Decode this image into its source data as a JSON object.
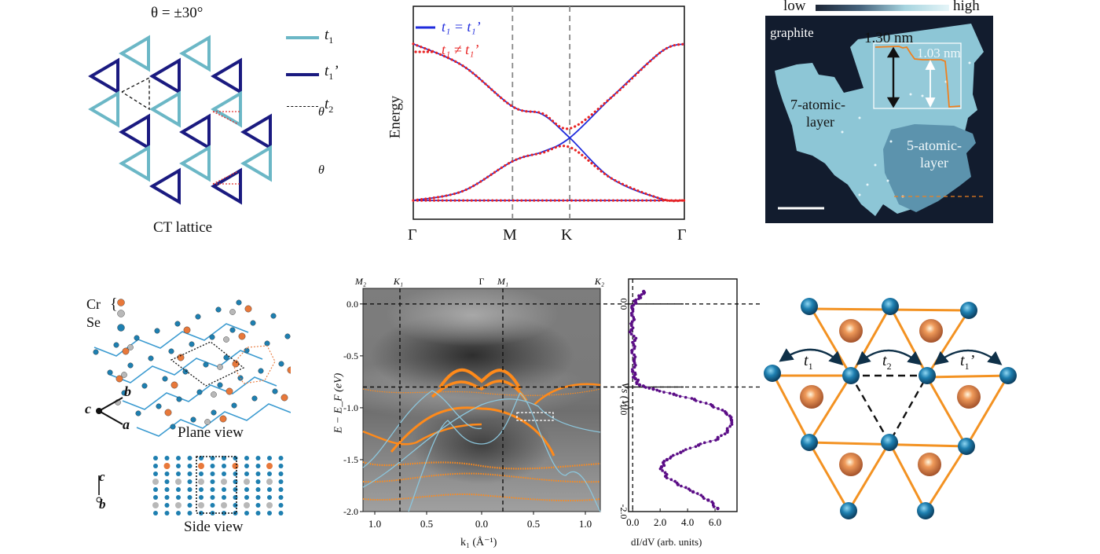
{
  "panel_a": {
    "theta_label": "θ = ±30°",
    "caption": "CT lattice",
    "legend": [
      {
        "label": "t",
        "sub": "1",
        "prime": "",
        "style": "solid",
        "color": "#6bb7c6"
      },
      {
        "label": "t",
        "sub": "1",
        "prime": "’",
        "style": "solid",
        "color": "#1a1a80"
      },
      {
        "label": "t",
        "sub": "2",
        "prime": "",
        "style": "dashed",
        "color": "#111111"
      }
    ],
    "angle_symbol": "θ",
    "colors": {
      "t1": "#6bb7c6",
      "t1p": "#1a1a80",
      "angle": "#e03030"
    }
  },
  "chart_data": [
    {
      "type": "line",
      "title": "",
      "ylabel": "Energy",
      "xlabel": "",
      "x_ticks": [
        "Γ",
        "M",
        "K",
        "Γ"
      ],
      "x_positions": [
        0,
        1,
        1.577,
        2.732
      ],
      "ylim": [
        -2.6,
        4.2
      ],
      "grid": false,
      "vlines_at": [
        "M",
        "K"
      ],
      "legend_position": "top-left",
      "series": [
        {
          "name": "t1 = t1’",
          "style": "solid",
          "color": "#1f2bdc",
          "bands": [
            {
              "x": [
                0,
                0.5,
                1,
                1.3,
                1.577,
                2.0,
                2.5,
                2.732
              ],
              "y": [
                3.0,
                2.3,
                1.0,
                0.75,
                0.0,
                -1.3,
                -1.95,
                -2.0
              ]
            },
            {
              "x": [
                0,
                0.5,
                1,
                1.3,
                1.577,
                2.0,
                2.5,
                2.732
              ],
              "y": [
                -2.0,
                -1.7,
                -0.75,
                -0.45,
                0.0,
                1.3,
                2.75,
                3.0
              ]
            },
            {
              "x": [
                0,
                2.732
              ],
              "y": [
                -2.0,
                -2.0
              ]
            }
          ]
        },
        {
          "name": "t1 ≠ t1’",
          "style": "dotted",
          "color": "#e82424",
          "bands": [
            {
              "x": [
                0,
                0.5,
                1,
                1.3,
                1.577,
                2.0,
                2.5,
                2.732
              ],
              "y": [
                3.0,
                2.3,
                1.0,
                0.78,
                0.3,
                1.3,
                2.75,
                3.0
              ]
            },
            {
              "x": [
                0,
                0.5,
                1,
                1.3,
                1.577,
                2.0,
                2.5,
                2.732
              ],
              "y": [
                -2.0,
                -1.7,
                -0.75,
                -0.48,
                -0.3,
                -1.3,
                -1.95,
                -2.0
              ]
            },
            {
              "x": [
                0,
                2.732
              ],
              "y": [
                -2.0,
                -2.0
              ]
            }
          ]
        }
      ],
      "legend": [
        {
          "label": "t₁ = t₁’",
          "color": "#1f2bdc"
        },
        {
          "label": "t₁ ≠ t₁’",
          "color": "#e82424"
        }
      ]
    },
    {
      "type": "heatmap",
      "title": "",
      "xlabel": "k₁ (Å⁻¹)",
      "ylabel": "E − E_F (eV)",
      "x_tick_labels": [
        "1.0",
        "0.5",
        "0.0",
        "0.5",
        "1.0"
      ],
      "y_ticks": [
        0.0,
        -0.5,
        -1.0,
        -1.5,
        -2.0
      ],
      "y_tick_labels": [
        "0.0",
        "-0.5",
        "-1.0",
        "-1.5",
        "-2.0"
      ],
      "ylim": [
        -2.0,
        0.15
      ],
      "top_labels": [
        "M₂",
        "K₁",
        "Γ",
        "M₁",
        "K₂"
      ],
      "hlines": [
        0.0,
        -0.8
      ],
      "vlines_at": [
        "K₁",
        "M₁"
      ],
      "highlight_box": {
        "k_range": [
          0.43,
          0.78
        ],
        "E": -1.04
      },
      "overlays": {
        "dft_orange": "#ff8a1a",
        "dft_blue": "#8cc6dc"
      }
    },
    {
      "type": "scatter",
      "title": "",
      "xlabel": "dI/dV (arb. units)",
      "ylabel": "Vs (V)",
      "x_ticks": [
        0.0,
        2.0,
        4.0,
        6.0
      ],
      "x_tick_labels": [
        "0.0",
        "2.0",
        "4.0",
        "6.0"
      ],
      "y_ticks": [
        0.0,
        -1.0,
        -2.0
      ],
      "y_tick_labels": [
        "0.0",
        "-1.0",
        "-2.0"
      ],
      "xlim": [
        -0.3,
        7.6
      ],
      "ylim": [
        -2.0,
        0.15
      ],
      "color": "#5b0d86",
      "hlines": [
        0.0,
        -0.8
      ],
      "vline": 0.0,
      "points": [
        [
          0.8,
          0.12
        ],
        [
          0.5,
          0.07
        ],
        [
          0.2,
          0.02
        ],
        [
          0.0,
          -0.05
        ],
        [
          0.1,
          -0.15
        ],
        [
          -0.1,
          -0.25
        ],
        [
          0.15,
          -0.35
        ],
        [
          -0.05,
          -0.45
        ],
        [
          0.1,
          -0.55
        ],
        [
          0.0,
          -0.65
        ],
        [
          0.2,
          -0.72
        ],
        [
          0.5,
          -0.78
        ],
        [
          1.5,
          -0.82
        ],
        [
          3.0,
          -0.87
        ],
        [
          4.5,
          -0.92
        ],
        [
          5.8,
          -0.98
        ],
        [
          6.8,
          -1.05
        ],
        [
          7.2,
          -1.12
        ],
        [
          6.9,
          -1.22
        ],
        [
          6.2,
          -1.3
        ],
        [
          4.8,
          -1.36
        ],
        [
          3.5,
          -1.43
        ],
        [
          2.5,
          -1.5
        ],
        [
          2.1,
          -1.57
        ],
        [
          2.4,
          -1.66
        ],
        [
          3.3,
          -1.74
        ],
        [
          4.4,
          -1.81
        ],
        [
          5.5,
          -1.89
        ],
        [
          6.2,
          -1.97
        ]
      ]
    }
  ],
  "panel_c": {
    "colorbar_low": "low",
    "colorbar_high": "high",
    "label_substrate": "graphite",
    "label_7layer_1": "7-atomic-",
    "label_7layer_2": "layer",
    "label_5layer_1": "5-atomic-",
    "label_5layer_2": "layer",
    "height_1": "1.30 nm",
    "height_2": "1.03 nm",
    "profile_color": "#f0801e"
  },
  "panel_d": {
    "legend_cr": "Cr",
    "legend_brace": "{",
    "legend_se": "Se",
    "axis_c": "c",
    "axis_a": "a",
    "axis_b": "b",
    "plane_caption": "Plane view",
    "side_caption": "Side view",
    "axis2_c": "c",
    "axis2_b": "b",
    "colors": {
      "cr1": "#e8783a",
      "cr2": "#b8b8b8",
      "se": "#1e7fb0",
      "bond": "#3a9ad0"
    }
  },
  "panel_g": {
    "label_t1": "t",
    "label_t1_sub": "1",
    "label_t2": "t",
    "label_t2_sub": "2",
    "label_t1p": "t",
    "label_t1p_sub": "1",
    "label_t1p_prime": "’",
    "colors": {
      "lattice": "#f39222",
      "se": "#1e7fb0",
      "cr": "#d8783a",
      "arrow": "#0f3048"
    }
  }
}
